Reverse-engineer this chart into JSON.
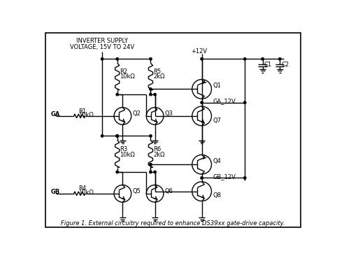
{
  "title": "Figure 1. External circuitry required to enhance DS39xx gate-drive capacity.",
  "border_color": "#000000",
  "bg_color": "#ffffff",
  "line_color": "#000000",
  "text_color": "#000000",
  "supply_label_1": "INVERTER SUPPLY",
  "supply_label_2": "VOLTAGE, 15V TO 24V",
  "v12_label": "+12V",
  "GA_label": "GA",
  "GB_label": "GB",
  "GA_12V_label": "GA_12V",
  "GB_12V_label": "GB_12V",
  "R1_label": "R1",
  "R1_val": "10kΩ",
  "R2_label": "R2",
  "R2_val": "10kΩ",
  "R3_label": "R3",
  "R3_val": "10kΩ",
  "R4_label": "R4",
  "R4_val": "10kΩ",
  "R5_label": "R5",
  "R5_val": "2kΩ",
  "R6_label": "R6",
  "R6_val": "2kΩ",
  "Q1_label": "Q1",
  "Q2_label": "Q2",
  "Q3_label": "Q3",
  "Q4_label": "Q4",
  "Q5_label": "Q5",
  "Q6_label": "Q6",
  "Q7_label": "Q7",
  "Q8_label": "Q8",
  "C1_label": "C1",
  "C2_label": "C2"
}
